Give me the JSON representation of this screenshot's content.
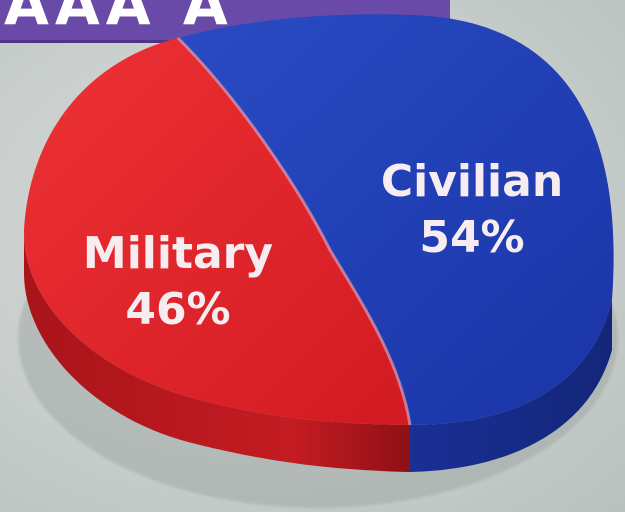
{
  "banner": {
    "fragment": "AAA A",
    "color": "#6a4aa8"
  },
  "chart_data": {
    "type": "pie",
    "style": "3d",
    "slices": [
      {
        "label": "Military",
        "value": 46,
        "value_label": "46%",
        "color": "#e0242a"
      },
      {
        "label": "Civilian",
        "value": 54,
        "value_label": "54%",
        "color": "#1f3fb3"
      }
    ]
  }
}
